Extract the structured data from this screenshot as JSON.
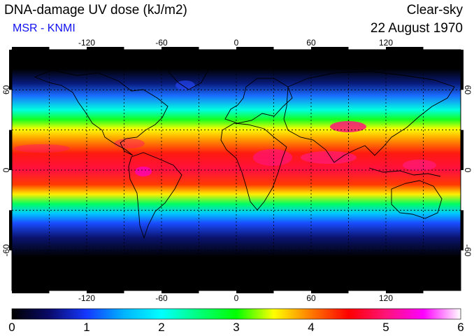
{
  "header": {
    "title": "DNA-damage UV dose (kJ/m2)",
    "organization": "MSR - KNMI",
    "sky_condition": "Clear-sky",
    "date": "22 August 1970"
  },
  "map": {
    "projection": "plate carree",
    "longitude_ticks": [
      "-120",
      "-60",
      "0",
      "60",
      "120"
    ],
    "latitude_ticks": [
      "60",
      "0",
      "-60"
    ],
    "gridlines": "dotted, every 30 degrees",
    "coastlines": true
  },
  "colorbar": {
    "labels": [
      "0",
      "1",
      "2",
      "3",
      "4",
      "5",
      "6"
    ],
    "range": [
      0,
      6
    ],
    "units": "kJ/m2",
    "stops": [
      {
        "value": 0.0,
        "color": "#000000"
      },
      {
        "value": 0.5,
        "color": "#0a0a6a"
      },
      {
        "value": 1.0,
        "color": "#1438ff"
      },
      {
        "value": 1.5,
        "color": "#00b4ff"
      },
      {
        "value": 2.0,
        "color": "#00ffff"
      },
      {
        "value": 2.5,
        "color": "#00ff7a"
      },
      {
        "value": 3.0,
        "color": "#00ff00"
      },
      {
        "value": 3.5,
        "color": "#ffff00"
      },
      {
        "value": 4.0,
        "color": "#ff7a00"
      },
      {
        "value": 4.5,
        "color": "#ff0000"
      },
      {
        "value": 5.0,
        "color": "#ff1478"
      },
      {
        "value": 5.5,
        "color": "#ff00ff"
      },
      {
        "value": 6.0,
        "color": "#ffffff"
      }
    ]
  }
}
